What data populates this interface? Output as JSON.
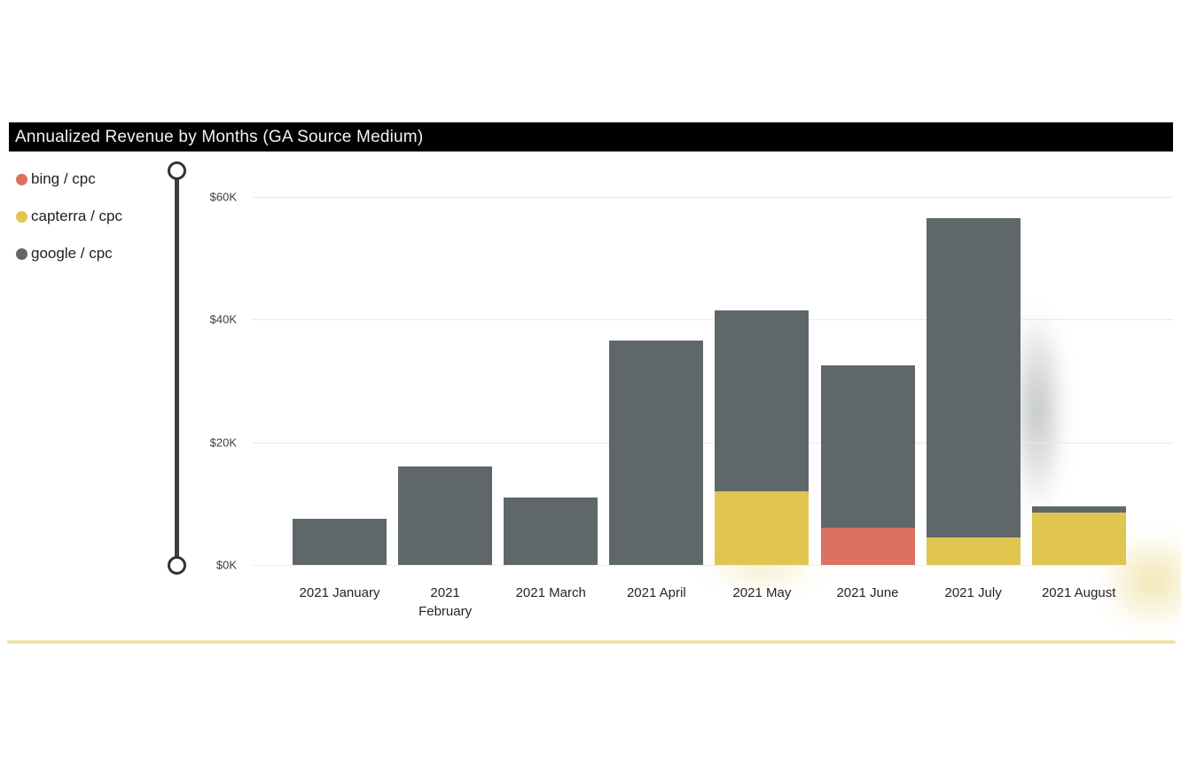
{
  "chart": {
    "title": "Annualized Revenue by Months (GA Source Medium)"
  },
  "chart_data": {
    "type": "bar",
    "stacked": true,
    "title": "Annualized Revenue by Months (GA Source Medium)",
    "unit": "USD thousands",
    "categories": [
      "2021 January",
      "2021 February",
      "2021 March",
      "2021 April",
      "2021 May",
      "2021 June",
      "2021 July",
      "2021 August"
    ],
    "x_tick_display": [
      "2021 January",
      "2021\nFebruary",
      "2021 March",
      "2021 April",
      "2021 May",
      "2021 June",
      "2021 July",
      "2021 August"
    ],
    "series": [
      {
        "name": "bing / cpc",
        "color": "#dc7160",
        "values_k": [
          0,
          0,
          0,
          0,
          0,
          6,
          0,
          0
        ]
      },
      {
        "name": "capterra / cpc",
        "color": "#e0c551",
        "values_k": [
          0,
          0,
          0,
          0,
          12,
          0,
          4.5,
          8.5
        ]
      },
      {
        "name": "google / cpc",
        "color": "#5f676a",
        "values_k": [
          7.5,
          16,
          11,
          36.5,
          29.5,
          26.5,
          52,
          1
        ]
      }
    ],
    "totals_k": [
      7.5,
      16,
      11,
      36.5,
      41.5,
      32.5,
      56.5,
      9.5
    ],
    "y_axis": {
      "tick_labels": [
        "$0K",
        "$20K",
        "$40K",
        "$60K"
      ],
      "tick_values_k": [
        0,
        20,
        40,
        60
      ],
      "max_k": 64.3
    },
    "legend_position": "top-left",
    "grid": true
  },
  "colors": {
    "title_bg": "#000000",
    "title_fg": "#f2f2f2",
    "gridline": "#e9e9e9",
    "slider": "#3d3d3d",
    "divider": "#f1e3a6"
  }
}
